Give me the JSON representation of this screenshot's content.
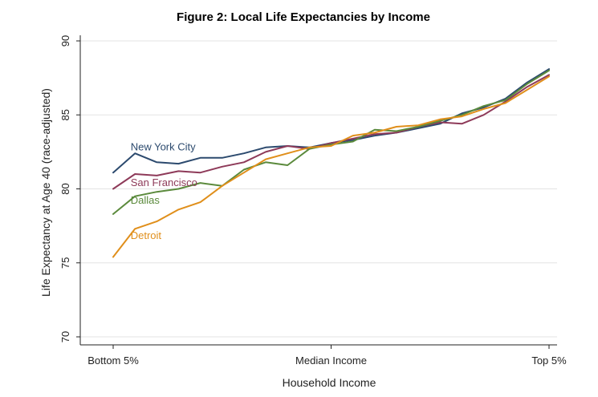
{
  "chart_data": {
    "type": "line",
    "title": "Figure 2: Local Life Expectancies by Income",
    "xlabel": "Household Income",
    "ylabel": "Life Expectancy at Age 40 (race-adjusted)",
    "xlim": [
      0,
      100
    ],
    "ylim": [
      70,
      90
    ],
    "yticks": [
      70,
      75,
      80,
      85,
      90
    ],
    "xticks": [
      {
        "value": 0,
        "label": "Bottom 5%"
      },
      {
        "value": 50,
        "label": "Median Income"
      },
      {
        "value": 100,
        "label": "Top 5%"
      }
    ],
    "grid": true,
    "x": [
      0,
      5,
      10,
      15,
      20,
      25,
      30,
      35,
      40,
      45,
      50,
      55,
      60,
      65,
      70,
      75,
      80,
      85,
      90,
      95,
      100
    ],
    "series": [
      {
        "name": "New York City",
        "color": "#2c4a6e",
        "label_at": {
          "x": 4,
          "y": 82.6
        },
        "values": [
          81.1,
          82.4,
          81.8,
          81.7,
          82.1,
          82.1,
          82.4,
          82.8,
          82.9,
          82.8,
          83.1,
          83.3,
          83.6,
          83.8,
          84.1,
          84.4,
          85.1,
          85.5,
          86.1,
          87.2,
          88.1
        ]
      },
      {
        "name": "San Francisco",
        "color": "#8e3a59",
        "label_at": {
          "x": 4,
          "y": 80.2
        },
        "values": [
          80.0,
          81.0,
          80.9,
          81.2,
          81.1,
          81.5,
          81.8,
          82.5,
          82.9,
          82.7,
          83.1,
          83.4,
          83.7,
          83.8,
          84.2,
          84.5,
          84.4,
          85.0,
          85.9,
          86.9,
          87.7
        ]
      },
      {
        "name": "Dallas",
        "color": "#5b8a3c",
        "label_at": {
          "x": 4,
          "y": 79.0
        },
        "values": [
          78.3,
          79.5,
          79.8,
          80.0,
          80.4,
          80.2,
          81.3,
          81.8,
          81.6,
          82.7,
          83.0,
          83.2,
          84.0,
          83.9,
          84.2,
          84.6,
          85.0,
          85.6,
          86.0,
          87.1,
          88.0
        ]
      },
      {
        "name": "Detroit",
        "color": "#e08f1b",
        "label_at": {
          "x": 4,
          "y": 76.6
        },
        "values": [
          75.4,
          77.3,
          77.8,
          78.6,
          79.1,
          80.2,
          81.1,
          82.0,
          82.4,
          82.8,
          82.9,
          83.6,
          83.8,
          84.2,
          84.3,
          84.7,
          84.9,
          85.4,
          85.8,
          86.7,
          87.6
        ]
      }
    ]
  }
}
